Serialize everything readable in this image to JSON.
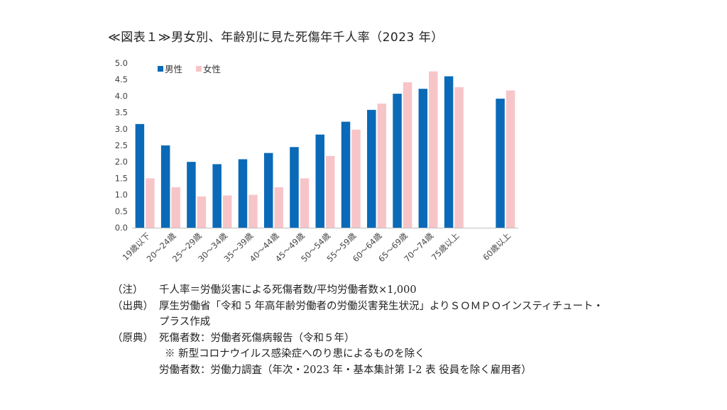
{
  "title": "≪図表１≫男女別、年齢別に見た死傷年千人率（2023 年）",
  "chart_data": {
    "type": "bar",
    "categories": [
      "19歳以下",
      "20～24歳",
      "25～29歳",
      "30～34歳",
      "35～39歳",
      "40～44歳",
      "45～49歳",
      "50～54歳",
      "55～59歳",
      "60～64歳",
      "65～69歳",
      "70～74歳",
      "75歳以上",
      "",
      "60歳以上"
    ],
    "series": [
      {
        "name": "男性",
        "color": "#0a6ab7",
        "values": [
          3.15,
          2.5,
          2.0,
          1.93,
          2.08,
          2.27,
          2.45,
          2.83,
          3.22,
          3.58,
          4.07,
          4.22,
          4.6,
          null,
          3.92
        ]
      },
      {
        "name": "女性",
        "color": "#f7c5c8",
        "values": [
          1.5,
          1.23,
          0.95,
          0.98,
          1.0,
          1.23,
          1.5,
          2.18,
          2.98,
          3.77,
          4.42,
          4.75,
          4.27,
          null,
          4.17
        ]
      }
    ],
    "y_ticks": [
      "0.0",
      "0.5",
      "1.0",
      "1.5",
      "2.0",
      "2.5",
      "3.0",
      "3.5",
      "4.0",
      "4.5",
      "5.0"
    ],
    "ylim": [
      0,
      5.0
    ],
    "legend_position": "top-left",
    "grid": false
  },
  "notes": {
    "note1_key": "（注）",
    "note1_text": "千人率＝労働災害による死傷者数/平均労働者数×1,000",
    "note2_key": "（出典）",
    "note2_text_line1": "厚生労働省「令和 5 年高年齢労働者の労働災害発生状況」よりＳＯＭＰＯインスティチュート・",
    "note2_text_line2": "プラス作成",
    "note3_key": "（原典）",
    "note3_text_line1": "死傷者数：労働者死傷病報告（令和５年）",
    "note3_text_line2": "※ 新型コロナウイルス感染症へのり患によるものを除く",
    "note3_text_line3": "労働者数：労働力調査（年次・2023 年・基本集計第 I-2 表 役員を除く雇用者）"
  }
}
